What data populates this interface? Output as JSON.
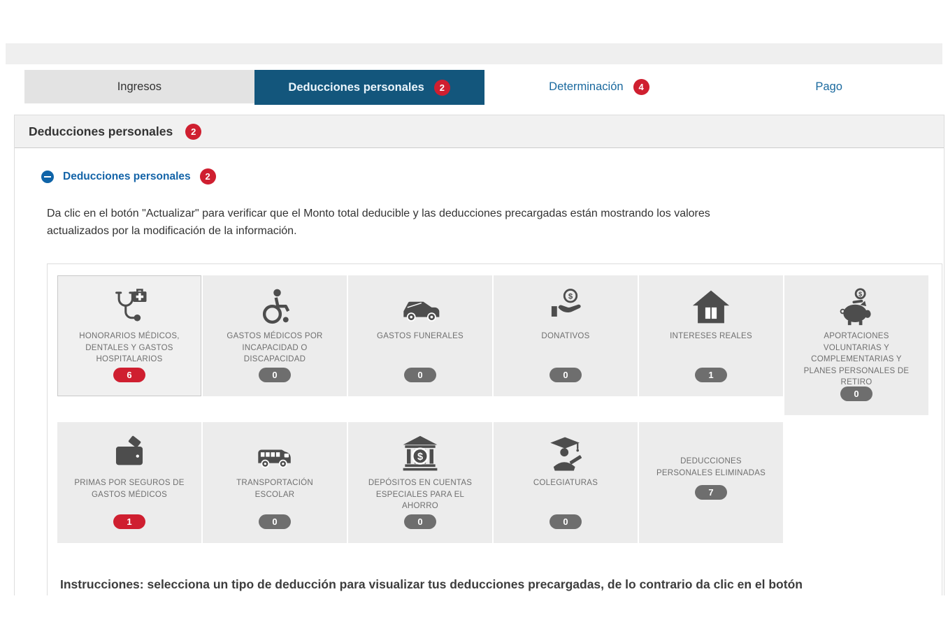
{
  "tabs": [
    {
      "label": "Ingresos",
      "badge": null,
      "state": "gray"
    },
    {
      "label": "Deducciones personales",
      "badge": "2",
      "state": "active"
    },
    {
      "label": "Determinación",
      "badge": "4",
      "state": "plain"
    },
    {
      "label": "Pago",
      "badge": null,
      "state": "plain"
    }
  ],
  "section_header": {
    "title": "Deducciones personales",
    "badge": "2"
  },
  "collapse_section": {
    "title": "Deducciones personales",
    "badge": "2"
  },
  "intro_text": "Da clic en el botón \"Actualizar\" para verificar que el Monto total deducible y las deducciones precargadas están mostrando los valores actualizados por la modificación de la información.",
  "tiles_row1": [
    {
      "icon": "stethoscope-medkit-icon",
      "label": "HONORARIOS MÉDICOS, DENTALES Y GASTOS HOSPITALARIOS",
      "count": "6",
      "variant": "red",
      "selected": true
    },
    {
      "icon": "wheelchair-icon",
      "label": "GASTOS MÉDICOS POR INCAPACIDAD O DISCAPACIDAD",
      "count": "0",
      "variant": "gray"
    },
    {
      "icon": "hearse-icon",
      "label": "GASTOS FUNERALES",
      "count": "0",
      "variant": "gray"
    },
    {
      "icon": "donation-hand-icon",
      "label": "DONATIVOS",
      "count": "0",
      "variant": "gray"
    },
    {
      "icon": "house-icon",
      "label": "INTERESES REALES",
      "count": "1",
      "variant": "gray"
    },
    {
      "icon": "piggy-bank-icon",
      "label": "APORTACIONES VOLUNTARIAS Y COMPLEMENTARIAS Y PLANES PERSONALES DE RETIRO",
      "count": "0",
      "variant": "gray",
      "tall": true
    }
  ],
  "tiles_row2": [
    {
      "icon": "wallet-icon",
      "label": "PRIMAS POR SEGUROS DE GASTOS MÉDICOS",
      "count": "1",
      "variant": "red"
    },
    {
      "icon": "school-bus-icon",
      "label": "TRANSPORTACIÓN ESCOLAR",
      "count": "0",
      "variant": "gray"
    },
    {
      "icon": "bank-icon",
      "label": "DEPÓSITOS EN CUENTAS ESPECIALES PARA EL AHORRO",
      "count": "0",
      "variant": "gray"
    },
    {
      "icon": "graduate-icon",
      "label": "COLEGIATURAS",
      "count": "0",
      "variant": "gray"
    },
    {
      "icon": null,
      "label": "DEDUCCIONES PERSONALES ELIMINADAS",
      "count": "7",
      "variant": "gray",
      "no_icon": true
    }
  ],
  "instructions_text": "Instrucciones: selecciona un tipo de deducción para visualizar tus deducciones precargadas, de lo contrario da clic en el botón",
  "colors": {
    "active_tab": "#13567c",
    "tab_link_blue": "#1a699e",
    "alert_red": "#cf1f30",
    "badge_gray": "#6e6e6e",
    "tile_bg": "#ececec",
    "icon_gray": "#4d4d4d"
  }
}
